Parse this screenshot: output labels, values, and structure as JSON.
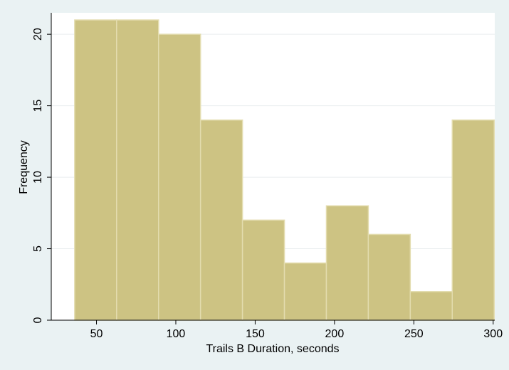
{
  "chart_data": {
    "type": "bar",
    "xlabel": "Trails B Duration, seconds",
    "ylabel": "Frequency",
    "bins": [
      {
        "x0": 36.25,
        "x1": 62.69,
        "value": 21
      },
      {
        "x0": 62.69,
        "x1": 89.13,
        "value": 21
      },
      {
        "x0": 89.13,
        "x1": 115.57,
        "value": 20
      },
      {
        "x0": 115.57,
        "x1": 142.01,
        "value": 14
      },
      {
        "x0": 142.01,
        "x1": 168.45,
        "value": 7
      },
      {
        "x0": 168.45,
        "x1": 194.89,
        "value": 4
      },
      {
        "x0": 194.89,
        "x1": 221.33,
        "value": 8
      },
      {
        "x0": 221.33,
        "x1": 247.77,
        "value": 6
      },
      {
        "x0": 247.77,
        "x1": 274.21,
        "value": 2
      },
      {
        "x0": 274.21,
        "x1": 300.65,
        "value": 14
      }
    ],
    "xticks": [
      50,
      100,
      150,
      200,
      250,
      300
    ],
    "yticks": [
      0,
      5,
      10,
      15,
      20
    ],
    "xlim": [
      21.5,
      301.0
    ],
    "ylim": [
      0,
      21.5
    ],
    "grid": true,
    "colors": {
      "background": "#eaf2f3",
      "plot_background": "#ffffff",
      "bar_fill": "#cdc383",
      "bar_edge": "#e3dcae",
      "grid": "#e9eeef",
      "axis": "#000000"
    }
  }
}
